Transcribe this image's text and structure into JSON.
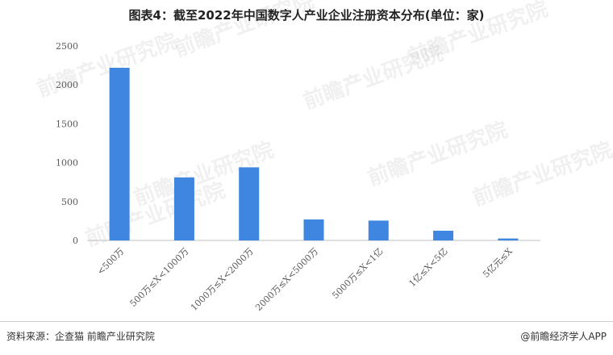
{
  "title": "图表4：截至2022年中国数字人产业企业注册资本分布(单位：家)",
  "footer": {
    "source": "资料来源：企查猫 前瞻产业研究院",
    "brand": "@前瞻经济学人APP"
  },
  "watermark": "前瞻产业研究院",
  "colors": {
    "bar": "#3f86e0",
    "axis": "#bfbfbf",
    "text": "#595959"
  },
  "chart_data": {
    "type": "bar",
    "title": "图表4：截至2022年中国数字人产业企业注册资本分布(单位：家)",
    "categories": [
      "<500万",
      "500万≤X<1000万",
      "1000万≤X<2000万",
      "2000万≤X<5000万",
      "5000万≤X<1亿",
      "1亿≤X<5亿",
      "5亿元≤X"
    ],
    "values": [
      2220,
      810,
      940,
      270,
      255,
      125,
      25
    ],
    "xlabel": "",
    "ylabel": "",
    "ylim": [
      0,
      2500
    ],
    "yticks": [
      0,
      500,
      1000,
      1500,
      2000,
      2500
    ],
    "grid": false,
    "legend": "none"
  }
}
